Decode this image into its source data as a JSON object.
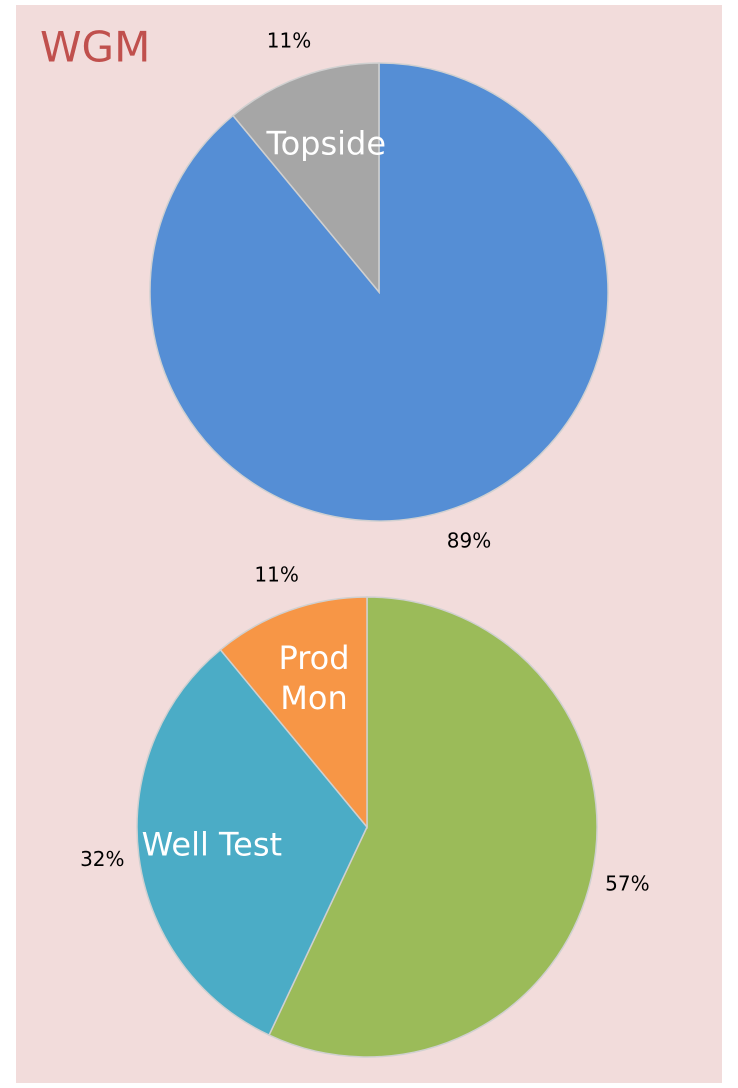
{
  "chart_data": [
    {
      "type": "pie",
      "title": "WGM",
      "categories": [
        null,
        "Topside"
      ],
      "values": [
        89,
        11
      ],
      "value_labels": [
        "89%",
        "11%"
      ],
      "colors": [
        "#558ed5",
        "#a6a6a6"
      ]
    },
    {
      "type": "pie",
      "categories": [
        null,
        "Well Test",
        "Prod Mon"
      ],
      "values": [
        57,
        32,
        11
      ],
      "value_labels": [
        "57%",
        "32%",
        "11%"
      ],
      "colors": [
        "#9bbb59",
        "#4bacc6",
        "#f79646"
      ]
    }
  ]
}
